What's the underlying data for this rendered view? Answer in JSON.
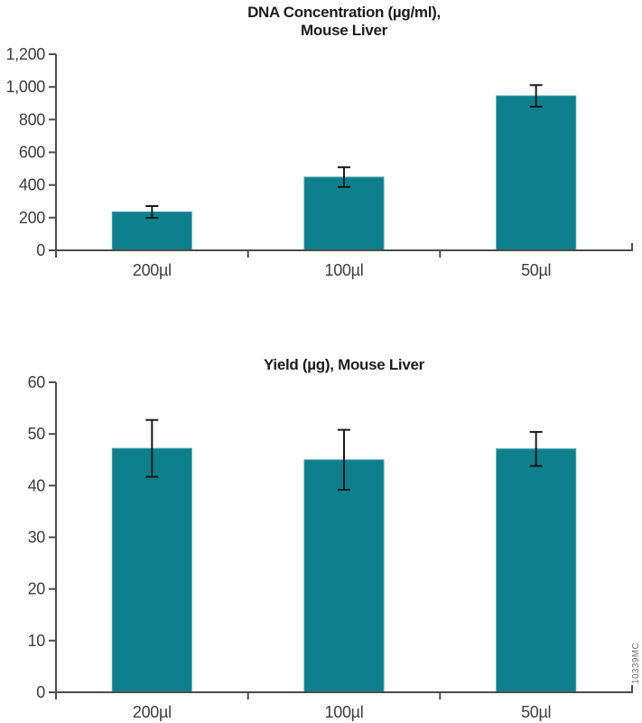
{
  "page": {
    "background": "#ffffff",
    "side_code": "10339MC"
  },
  "chart_data": [
    {
      "type": "bar",
      "title": "DNA Concentration (µg/ml), Mouse Liver",
      "title_lines": [
        "DNA Concentration (µg/ml),",
        "Mouse Liver"
      ],
      "categories": [
        "200µl",
        "100µl",
        "50µl"
      ],
      "values": [
        235,
        448,
        945
      ],
      "errors": [
        36,
        60,
        66
      ],
      "ylim": [
        0,
        1200
      ],
      "ytick_step": 200,
      "ytick_labels": [
        "0",
        "200",
        "400",
        "600",
        "800",
        "1,000",
        "1,200"
      ],
      "xlabel": "",
      "ylabel": "",
      "grid": false,
      "legend": "none",
      "bar_color": "#0E7F8D",
      "bar_edge_color": "#3FA0AC",
      "axis_color": "#4D4D4D",
      "error_color": "#1A1A1A",
      "tick_text_color": "#3D3D3D",
      "title_color": "#1C1C1C"
    },
    {
      "type": "bar",
      "title": "Yield (µg), Mouse Liver",
      "title_lines": [
        "Yield (µg), Mouse Liver"
      ],
      "categories": [
        "200µl",
        "100µl",
        "50µl"
      ],
      "values": [
        47.2,
        45,
        47.1
      ],
      "errors": [
        5.5,
        5.8,
        3.3
      ],
      "ylim": [
        0,
        60
      ],
      "ytick_step": 10,
      "ytick_labels": [
        "0",
        "10",
        "20",
        "30",
        "40",
        "50",
        "60"
      ],
      "xlabel": "",
      "ylabel": "",
      "grid": false,
      "legend": "none",
      "bar_color": "#0E7F8D",
      "bar_edge_color": "#3FA0AC",
      "axis_color": "#4D4D4D",
      "error_color": "#1A1A1A",
      "tick_text_color": "#3D3D3D",
      "title_color": "#1C1C1C"
    }
  ]
}
